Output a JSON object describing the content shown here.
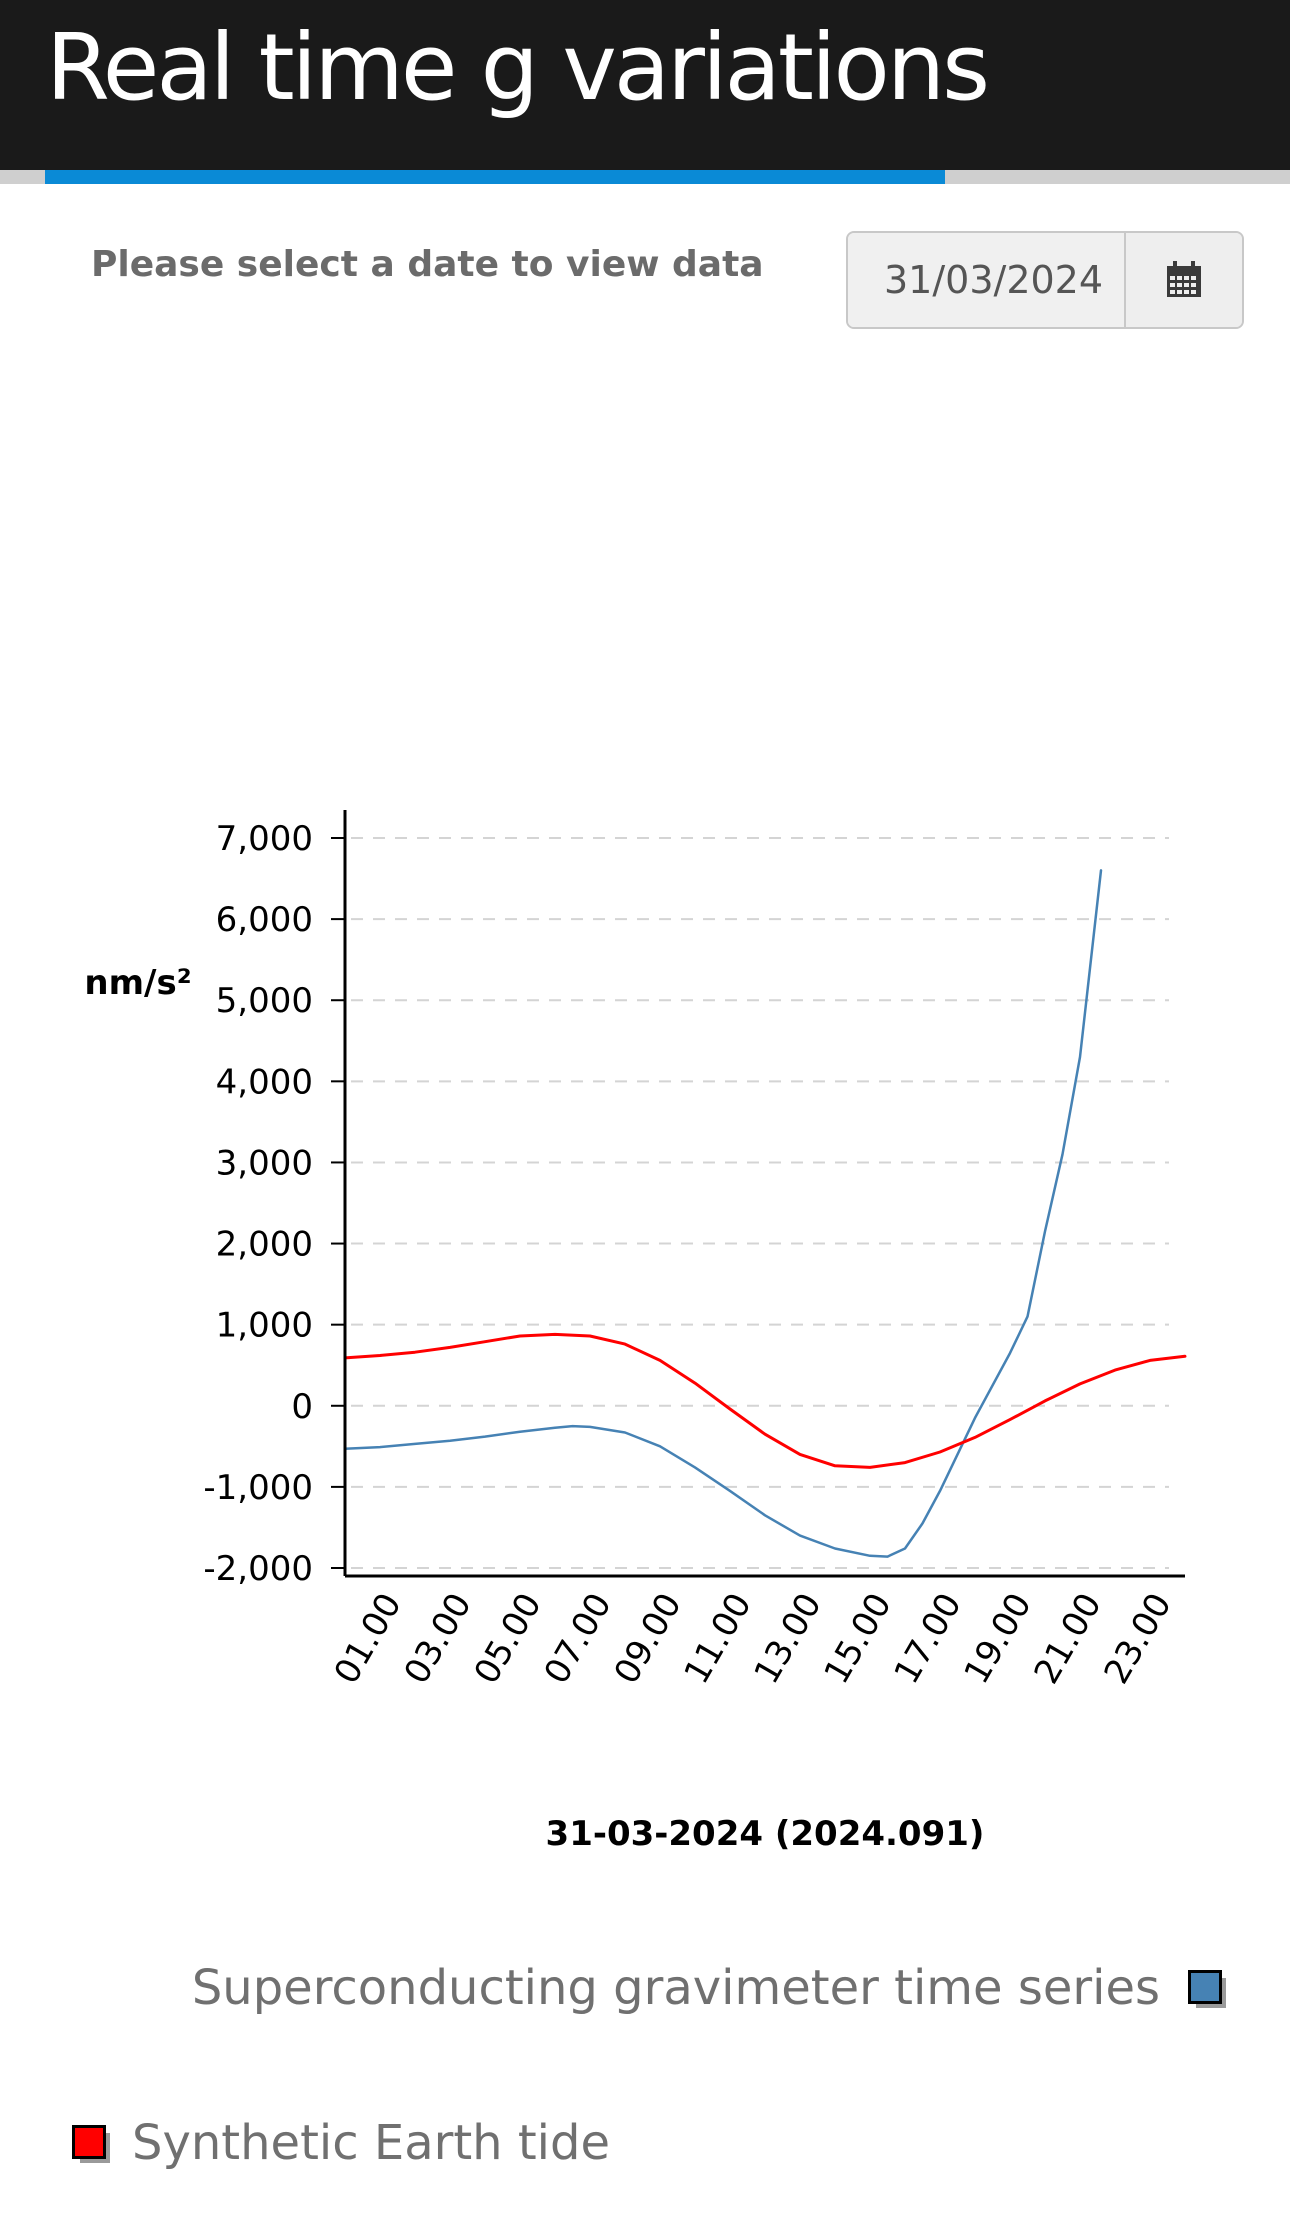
{
  "header": {
    "title": "Real time g variations"
  },
  "date_selector": {
    "prompt": "Please select a date to view data",
    "value": "31/03/2024",
    "calendar_icon": "calendar-icon"
  },
  "legend": {
    "items": [
      {
        "label": "Superconducting gravimeter time series",
        "color": "#4682b4"
      },
      {
        "label": "Synthetic Earth tide",
        "color": "#ff0000"
      }
    ]
  },
  "chart_data": {
    "type": "line",
    "title": "",
    "xlabel": "31-03-2024 (2024.091)",
    "ylabel": "nm/s²",
    "ylim": [
      -2000,
      7000
    ],
    "xlim": [
      0,
      24
    ],
    "yticks": [
      "7,000",
      "6,000",
      "5,000",
      "4,000",
      "3,000",
      "2,000",
      "1,000",
      "0",
      "-1,000",
      "-2,000"
    ],
    "yticks_values": [
      7000,
      6000,
      5000,
      4000,
      3000,
      2000,
      1000,
      0,
      -1000,
      -2000
    ],
    "xticks": [
      "01.00",
      "03.00",
      "05.00",
      "07.00",
      "09.00",
      "11.00",
      "13.00",
      "15.00",
      "17.00",
      "19.00",
      "21.00",
      "23.00"
    ],
    "xticks_values": [
      1,
      3,
      5,
      7,
      9,
      11,
      13,
      15,
      17,
      19,
      21,
      23
    ],
    "grid": "horizontal dashed",
    "legend_position": "bottom",
    "series": [
      {
        "name": "Superconducting gravimeter time series",
        "color": "#4682b4",
        "x": [
          0,
          1,
          2,
          3,
          4,
          5,
          6,
          6.5,
          7,
          8,
          9,
          10,
          11,
          12,
          13,
          14,
          15,
          15.5,
          16,
          16.5,
          17,
          17.5,
          18,
          19,
          19.5,
          20,
          20.5,
          21,
          21.6
        ],
        "y": [
          -530,
          -510,
          -470,
          -430,
          -380,
          -320,
          -270,
          -250,
          -260,
          -330,
          -500,
          -760,
          -1050,
          -1350,
          -1600,
          -1760,
          -1850,
          -1860,
          -1760,
          -1450,
          -1050,
          -600,
          -150,
          650,
          1100,
          2150,
          3100,
          4300,
          6600
        ]
      },
      {
        "name": "Synthetic Earth tide",
        "color": "#ff0000",
        "x": [
          0,
          1,
          2,
          3,
          4,
          5,
          6,
          7,
          8,
          9,
          10,
          11,
          12,
          13,
          14,
          15,
          16,
          17,
          18,
          19,
          20,
          21,
          22,
          23,
          24
        ],
        "y": [
          590,
          620,
          660,
          720,
          790,
          860,
          880,
          860,
          760,
          560,
          280,
          -40,
          -350,
          -600,
          -740,
          -760,
          -700,
          -570,
          -390,
          -170,
          60,
          270,
          440,
          560,
          610
        ]
      }
    ]
  }
}
